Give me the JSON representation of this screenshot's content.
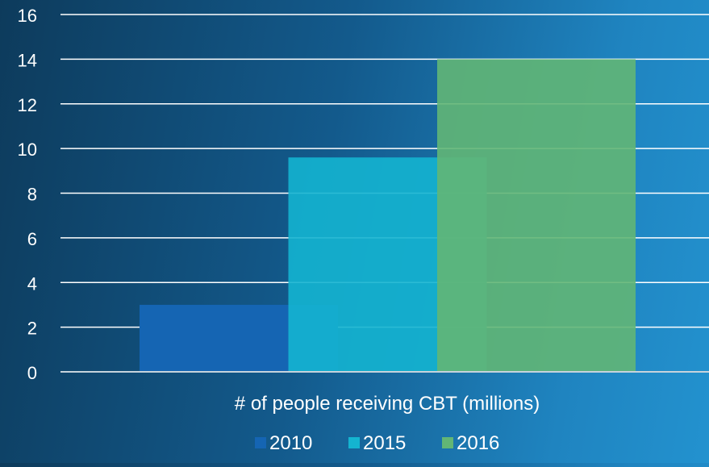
{
  "chart_data": {
    "type": "bar",
    "categories": [
      "# of people receiving CBT (millions)"
    ],
    "series": [
      {
        "name": "2010",
        "values": [
          3
        ],
        "color": "#1565b3"
      },
      {
        "name": "2015",
        "values": [
          9.6
        ],
        "color": "#14b4d0"
      },
      {
        "name": "2016",
        "values": [
          14
        ],
        "color": "#62b675"
      }
    ],
    "title": "",
    "xlabel": "",
    "ylabel": "",
    "ylim": [
      0,
      16
    ],
    "yticks": [
      0,
      2,
      4,
      6,
      8,
      10,
      12,
      14,
      16
    ],
    "grid": true,
    "legend": "bottom",
    "bars_overlap": true
  }
}
